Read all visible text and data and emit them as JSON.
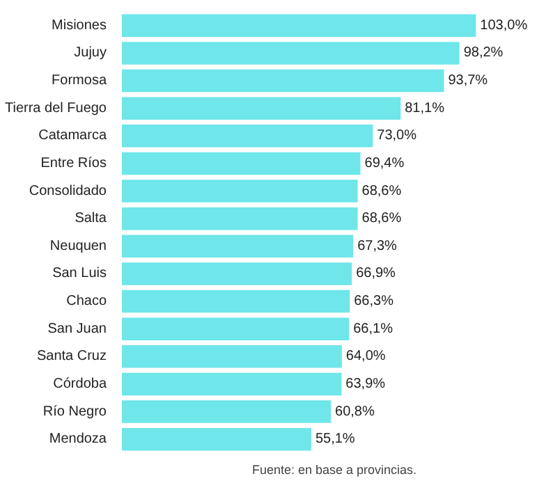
{
  "chart_data": {
    "type": "bar",
    "orientation": "horizontal",
    "categories": [
      "Misiones",
      "Jujuy",
      "Formosa",
      "Tierra del Fuego",
      "Catamarca",
      "Entre Ríos",
      "Consolidado",
      "Salta",
      "Neuquen",
      "San Luis",
      "Chaco",
      "San Juan",
      "Santa Cruz",
      "Córdoba",
      "Río Negro",
      "Mendoza"
    ],
    "values": [
      103.0,
      98.2,
      93.7,
      81.1,
      73.0,
      69.4,
      68.6,
      68.6,
      67.3,
      66.9,
      66.3,
      66.1,
      64.0,
      63.9,
      60.8,
      55.1
    ],
    "value_labels": [
      "103,0%",
      "98,2%",
      "93,7%",
      "81,1%",
      "73,0%",
      "69,4%",
      "68,6%",
      "68,6%",
      "67,3%",
      "66,9%",
      "66,3%",
      "66,1%",
      "64,0%",
      "63,9%",
      "60,8%",
      "55,1%"
    ],
    "color": "#6ee6ea",
    "annotations": [
      "Fuente: en base a provincias."
    ],
    "grid": false
  }
}
